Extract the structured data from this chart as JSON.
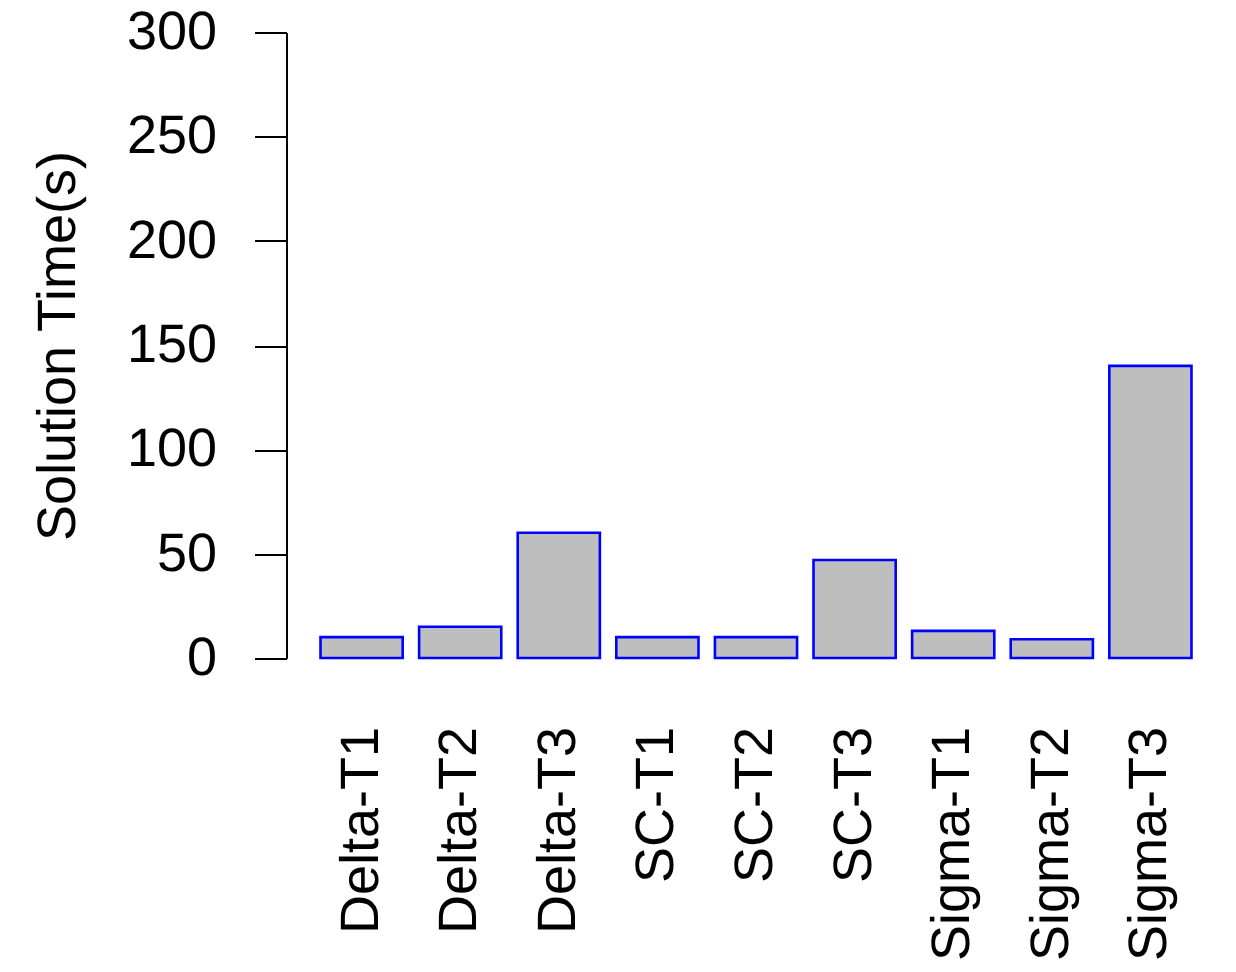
{
  "chart_data": {
    "type": "bar",
    "ylabel": "Solution Time(s)",
    "categories": [
      "Delta-T1",
      "Delta-T2",
      "Delta-T3",
      "SC-T1",
      "SC-T2",
      "SC-T3",
      "Sigma-T1",
      "Sigma-T2",
      "Sigma-T3"
    ],
    "values": [
      10,
      15,
      60,
      10,
      10,
      47,
      13,
      9,
      140
    ],
    "color": "#bebebe",
    "ylim": [
      0,
      300
    ],
    "yticks": [
      0,
      50,
      100,
      150,
      200,
      250,
      300
    ],
    "grid": false
  }
}
